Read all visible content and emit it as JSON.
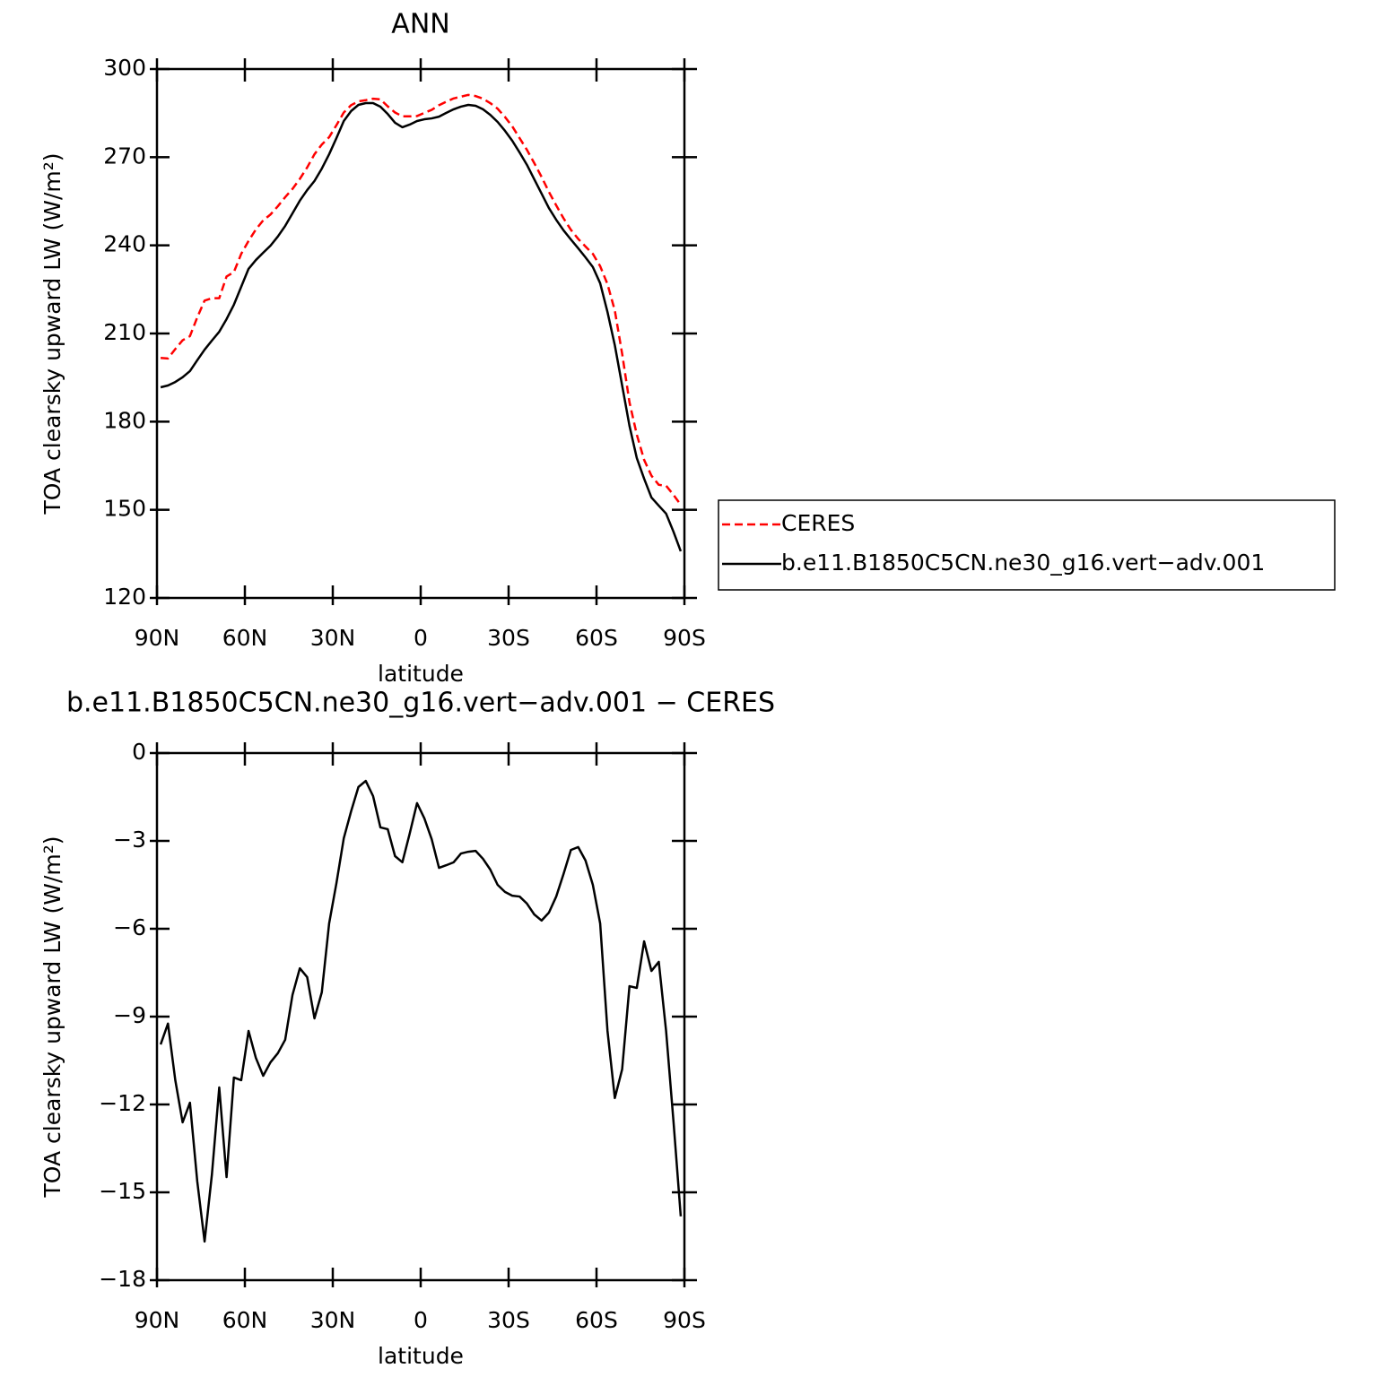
{
  "chart_data": [
    {
      "type": "line",
      "title": "ANN",
      "xlabel": "latitude",
      "ylabel": "TOA clearsky upward LW (W/m²)",
      "x": [
        88.75,
        86.25,
        83.75,
        81.25,
        78.75,
        76.25,
        73.75,
        71.25,
        68.75,
        66.25,
        63.75,
        61.25,
        58.75,
        56.25,
        53.75,
        51.25,
        48.75,
        46.25,
        43.75,
        41.25,
        38.75,
        36.25,
        33.75,
        31.25,
        28.75,
        26.25,
        23.75,
        21.25,
        18.75,
        16.25,
        13.75,
        11.25,
        8.75,
        6.25,
        3.75,
        1.25,
        -1.25,
        -3.75,
        -6.25,
        -8.75,
        -11.25,
        -13.75,
        -16.25,
        -18.75,
        -21.25,
        -23.75,
        -26.25,
        -28.75,
        -31.25,
        -33.75,
        -36.25,
        -38.75,
        -41.25,
        -43.75,
        -46.25,
        -48.75,
        -51.25,
        -53.75,
        -56.25,
        -58.75,
        -61.25,
        -63.75,
        -66.25,
        -68.75,
        -71.25,
        -73.75,
        -76.25,
        -78.75,
        -81.25,
        -83.75,
        -86.25,
        -88.75
      ],
      "series": [
        {
          "name": "CERES",
          "color": "#ff0000",
          "line_style": "dashed",
          "values": [
            201.7,
            201.5,
            204.7,
            207.7,
            209.1,
            215.5,
            221.2,
            222.0,
            222.0,
            229.4,
            230.9,
            237.1,
            241.5,
            245.4,
            248.5,
            250.5,
            253.3,
            256.4,
            259.2,
            262.6,
            266.5,
            271.0,
            274.3,
            276.8,
            280.9,
            285.2,
            287.7,
            289.0,
            289.4,
            289.9,
            289.7,
            287.3,
            285.2,
            283.9,
            283.9,
            284.0,
            285.1,
            286.1,
            287.7,
            288.9,
            290.0,
            290.6,
            291.2,
            290.8,
            289.9,
            288.4,
            286.5,
            283.7,
            280.5,
            276.5,
            272.5,
            268.0,
            263.3,
            258.2,
            253.6,
            249.2,
            245.3,
            242.2,
            239.6,
            237.1,
            232.9,
            226.8,
            217.8,
            203.1,
            186.6,
            175.6,
            167.0,
            161.6,
            158.5,
            158.2,
            155.1,
            151.7
          ]
        },
        {
          "name": "b.e11.B1850C5CN.ne30_g16.vert−adv.001",
          "color": "#000000",
          "line_style": "solid",
          "values": [
            191.7,
            192.3,
            193.5,
            195.1,
            197.2,
            200.9,
            204.5,
            207.6,
            210.6,
            214.9,
            219.8,
            225.9,
            232.0,
            235.0,
            237.5,
            239.9,
            243.0,
            246.6,
            250.9,
            255.2,
            258.8,
            261.9,
            266.1,
            271.0,
            276.5,
            282.3,
            285.7,
            287.8,
            288.4,
            288.4,
            287.2,
            284.7,
            281.7,
            280.2,
            281.1,
            282.3,
            282.9,
            283.2,
            283.8,
            285.1,
            286.3,
            287.2,
            287.8,
            287.5,
            286.3,
            284.4,
            282.0,
            279.0,
            275.6,
            271.6,
            267.4,
            262.5,
            257.6,
            252.7,
            248.7,
            245.1,
            242.0,
            239.0,
            235.9,
            232.6,
            227.1,
            217.3,
            206.0,
            192.3,
            178.6,
            167.6,
            160.6,
            154.2,
            151.4,
            148.7,
            142.6,
            135.9
          ]
        }
      ],
      "xlim": [
        90,
        -90
      ],
      "xticks": [
        {
          "value": 90,
          "label": "90N"
        },
        {
          "value": 60,
          "label": "60N"
        },
        {
          "value": 30,
          "label": "30N"
        },
        0,
        {
          "value": -30,
          "label": "30S"
        },
        {
          "value": -60,
          "label": "60S"
        },
        {
          "value": -90,
          "label": "90S"
        }
      ],
      "ylim": [
        120,
        300
      ],
      "yticks": [
        120,
        150,
        180,
        210,
        240,
        270,
        300
      ],
      "legend": "right"
    },
    {
      "type": "line",
      "title": "b.e11.B1850C5CN.ne30_g16.vert−adv.001 − CERES",
      "xlabel": "latitude",
      "ylabel": "TOA clearsky upward LW (W/m²)",
      "x": [
        88.75,
        86.25,
        83.75,
        81.25,
        78.75,
        76.25,
        73.75,
        71.25,
        68.75,
        66.25,
        63.75,
        61.25,
        58.75,
        56.25,
        53.75,
        51.25,
        48.75,
        46.25,
        43.75,
        41.25,
        38.75,
        36.25,
        33.75,
        31.25,
        28.75,
        26.25,
        23.75,
        21.25,
        18.75,
        16.25,
        13.75,
        11.25,
        8.75,
        6.25,
        3.75,
        1.25,
        -1.25,
        -3.75,
        -6.25,
        -8.75,
        -11.25,
        -13.75,
        -16.25,
        -18.75,
        -21.25,
        -23.75,
        -26.25,
        -28.75,
        -31.25,
        -33.75,
        -36.25,
        -38.75,
        -41.25,
        -43.75,
        -46.25,
        -48.75,
        -51.25,
        -53.75,
        -56.25,
        -58.75,
        -61.25,
        -63.75,
        -66.25,
        -68.75,
        -71.25,
        -73.75,
        -76.25,
        -78.75,
        -81.25,
        -83.75,
        -86.25,
        -88.75
      ],
      "series": [
        {
          "color": "#000000",
          "line_style": "solid",
          "values": [
            -9.95,
            -9.24,
            -11.17,
            -12.61,
            -11.94,
            -14.63,
            -16.68,
            -14.39,
            -11.42,
            -14.48,
            -11.08,
            -11.17,
            -9.49,
            -10.41,
            -11.02,
            -10.56,
            -10.25,
            -9.79,
            -8.26,
            -7.35,
            -7.65,
            -9.06,
            -8.17,
            -5.82,
            -4.44,
            -2.91,
            -1.99,
            -1.16,
            -0.95,
            -1.47,
            -2.54,
            -2.6,
            -3.52,
            -3.73,
            -2.75,
            -1.71,
            -2.23,
            -2.94,
            -3.92,
            -3.83,
            -3.73,
            -3.43,
            -3.37,
            -3.34,
            -3.61,
            -3.98,
            -4.5,
            -4.74,
            -4.87,
            -4.9,
            -5.14,
            -5.51,
            -5.72,
            -5.45,
            -4.9,
            -4.13,
            -3.31,
            -3.21,
            -3.67,
            -4.5,
            -5.82,
            -9.49,
            -11.78,
            -10.8,
            -7.96,
            -8.02,
            -6.43,
            -7.44,
            -7.13,
            -9.49,
            -12.55,
            -15.82
          ]
        }
      ],
      "xlim": [
        90,
        -90
      ],
      "xticks": [
        {
          "value": 90,
          "label": "90N"
        },
        {
          "value": 60,
          "label": "60N"
        },
        {
          "value": 30,
          "label": "30N"
        },
        0,
        {
          "value": -30,
          "label": "30S"
        },
        {
          "value": -60,
          "label": "60S"
        },
        {
          "value": -90,
          "label": "90S"
        }
      ],
      "ylim": [
        -18,
        0
      ],
      "yticks": [
        {
          "value": -18,
          "label": "−18"
        },
        {
          "value": -15,
          "label": "−15"
        },
        {
          "value": -12,
          "label": "−12"
        },
        {
          "value": -9,
          "label": "−9"
        },
        {
          "value": -6,
          "label": "−6"
        },
        {
          "value": -3,
          "label": "−3"
        },
        0
      ]
    }
  ]
}
